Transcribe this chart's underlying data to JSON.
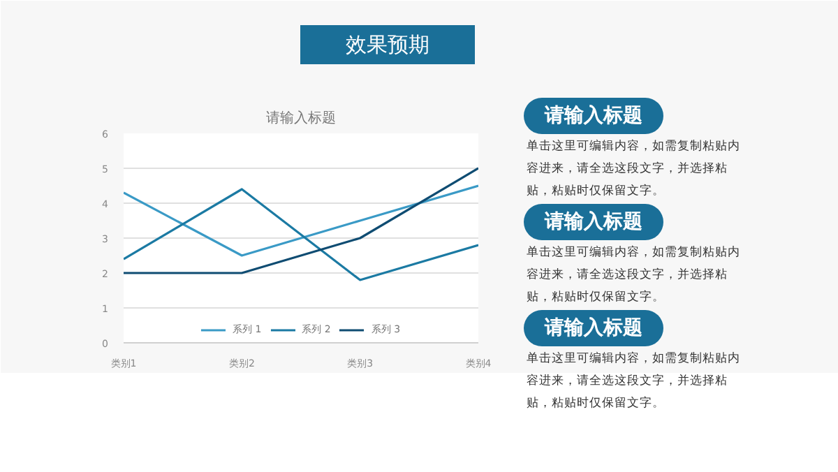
{
  "chart_data": {
    "type": "line",
    "title": "请输入标题",
    "categories": [
      "类别1",
      "类别2",
      "类别3",
      "类别4"
    ],
    "series": [
      {
        "name": "系列 1",
        "color": "#3a9ac6",
        "values": [
          4.3,
          2.5,
          3.5,
          4.5
        ]
      },
      {
        "name": "系列 2",
        "color": "#1b7aa3",
        "values": [
          2.4,
          4.4,
          1.8,
          2.8
        ]
      },
      {
        "name": "系列 3",
        "color": "#0f4c72",
        "values": [
          2,
          2,
          3,
          5
        ]
      }
    ],
    "ylim": [
      0,
      6
    ],
    "yticks": [
      0,
      1,
      2,
      3,
      4,
      5,
      6
    ],
    "grid": "y",
    "legend": "bottom",
    "line_style": "solid",
    "annotations": [
      "效果预期",
      "请输入标题",
      "单击这里可编辑内容，如需复制粘贴内容进来，请全选这段文字，并选择粘贴，粘贴时仅保留文字。",
      "请输入标题",
      "单击这里可编辑内容，如需复制粘贴内容进来，请全选这段文字，并选择粘贴，粘贴时仅保留文字。",
      "请输入标题",
      "单击这里可编辑内容，如需复制粘贴内容进来，请全选这段文字，并选择粘贴，粘贴时仅保留文字。"
    ]
  }
}
